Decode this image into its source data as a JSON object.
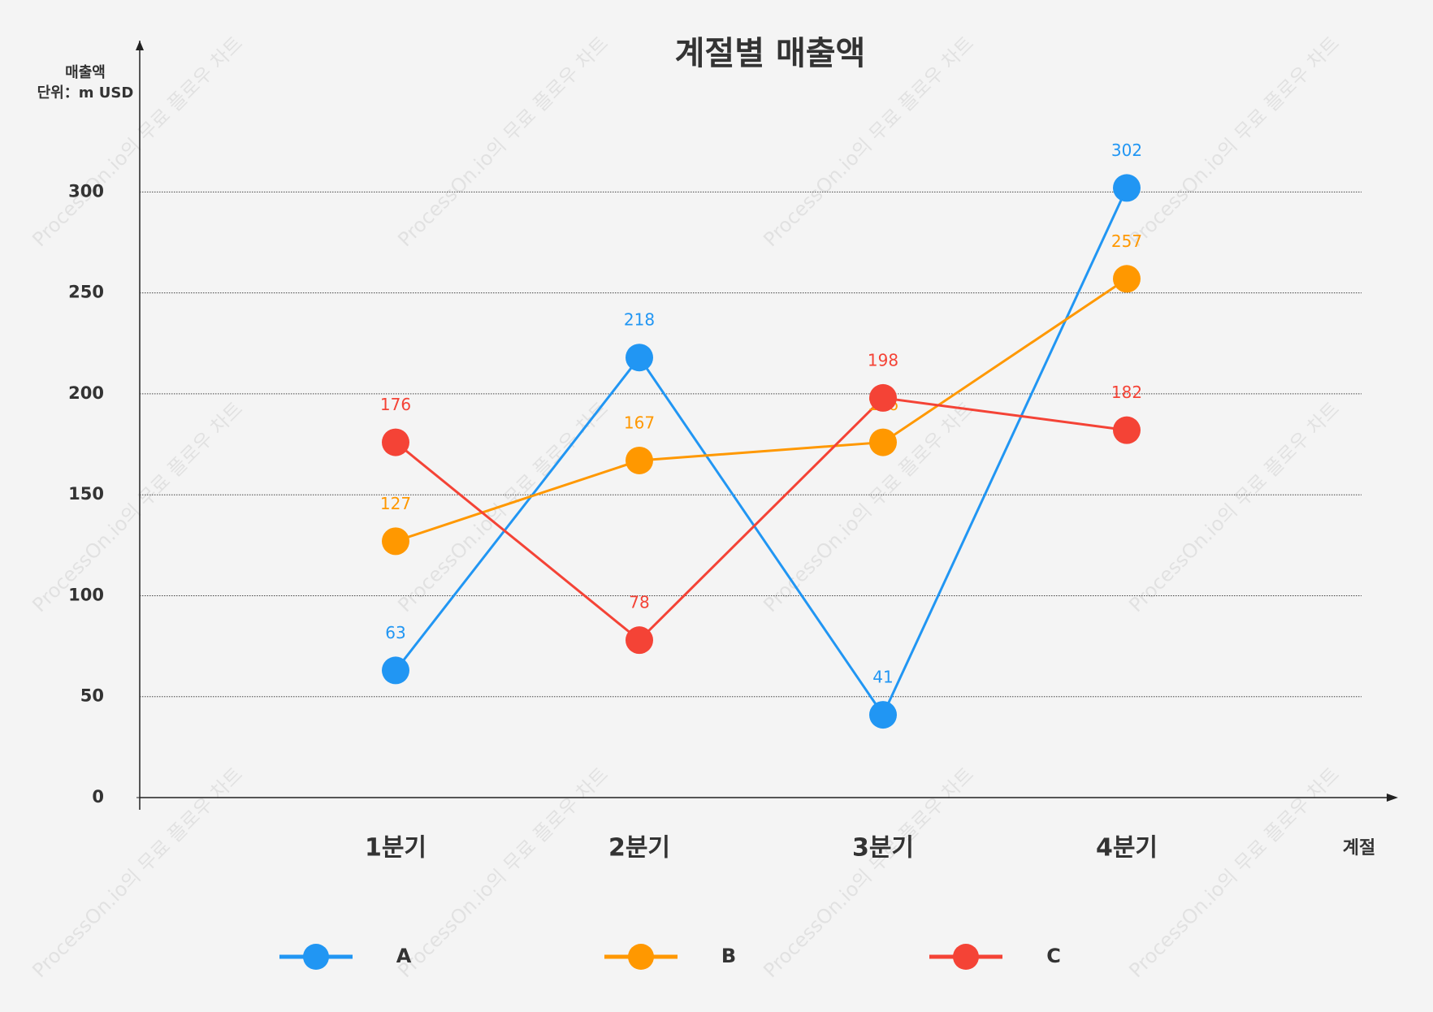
{
  "chart_data": {
    "type": "line",
    "title": "계절별 매출액",
    "y_label": [
      "매출액",
      "단위：m USD"
    ],
    "x_label": "계절",
    "watermark": "ProcessOn.io의 무료 플로우 차트",
    "categories": [
      "1분기",
      "2분기",
      "3분기",
      "4분기"
    ],
    "series": [
      {
        "name": "A",
        "color": "#2196f3",
        "values": [
          63,
          218,
          41,
          302
        ]
      },
      {
        "name": "B",
        "color": "#ff9800",
        "values": [
          127,
          167,
          176,
          257
        ]
      },
      {
        "name": "C",
        "color": "#f44336",
        "values": [
          176,
          78,
          198,
          182
        ]
      }
    ],
    "ylim": [
      0,
      375
    ],
    "yticks": [
      0,
      50,
      100,
      150,
      200,
      250,
      300
    ],
    "grid": true
  }
}
